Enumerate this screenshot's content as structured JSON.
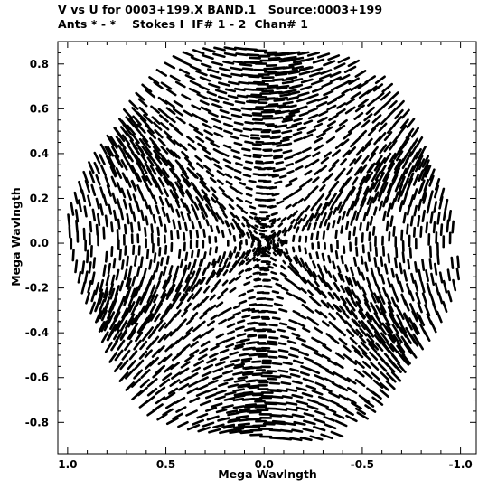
{
  "header": {
    "line1": "V vs U for 0003+199.X BAND.1   Source:0003+199",
    "line2": "Ants * - *    Stokes I  IF# 1 - 2  Chan# 1"
  },
  "chart_data": {
    "type": "scatter",
    "title": "V vs U for 0003+199.X BAND.1   Source:0003+199",
    "subtitle": "Ants * - *    Stokes I  IF# 1 - 2  Chan# 1",
    "xlabel": "Mega Wavlngth",
    "ylabel": "Mega Wavlngth",
    "xlim": [
      1.05,
      -1.08
    ],
    "ylim": [
      -0.94,
      0.9
    ],
    "x_reversed": true,
    "x_ticks": [
      1.0,
      0.5,
      0.0,
      -0.5,
      -1.0
    ],
    "x_tick_labels": [
      "1.0",
      "0.5",
      "0.0",
      "-0.5",
      "-1.0"
    ],
    "y_ticks": [
      0.8,
      0.6,
      0.4,
      0.2,
      0.0,
      -0.2,
      -0.4,
      -0.6,
      -0.8
    ],
    "y_tick_labels": [
      "0.8",
      "0.6",
      "0.4",
      "0.2",
      "0.0",
      "-0.2",
      "-0.4",
      "-0.6",
      "-0.8"
    ],
    "grid": false,
    "legend": "none",
    "marker_color": "#000000",
    "pattern": "uv-coverage tracks: concentric elliptical arcs forming a six-lobed (hexagonal star) pattern; tracks show gaps along three diagonal bands",
    "lobe_orientations_deg": [
      5,
      65,
      125,
      185,
      245,
      305
    ],
    "outer_radius_approx": 0.9,
    "lobe_outer_radius_approx": 1.0
  }
}
